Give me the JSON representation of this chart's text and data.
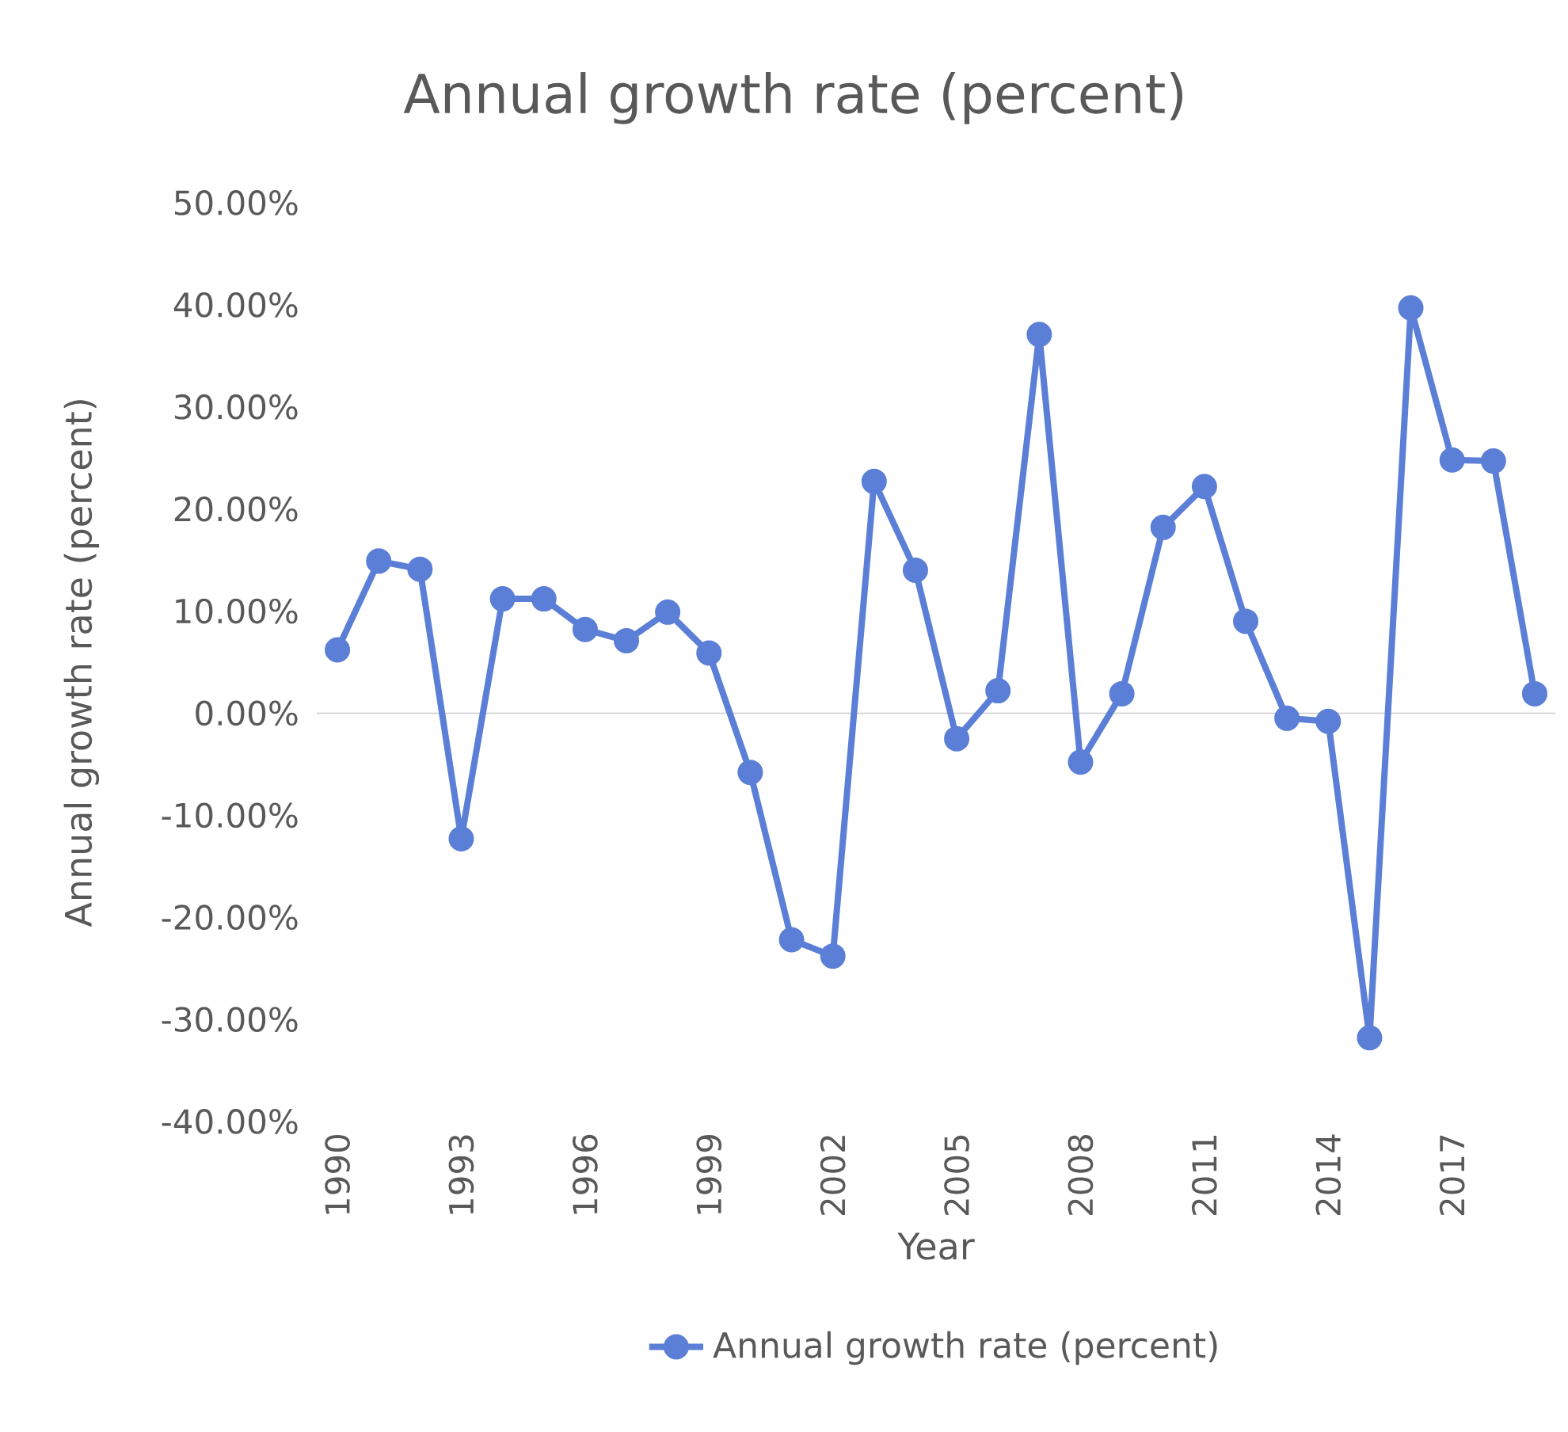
{
  "chart_data": {
    "type": "line",
    "title": "Annual growth rate (percent)",
    "xlabel": "Year",
    "ylabel": "Annual growth rate (percent)",
    "categories": [
      "1990",
      null,
      null,
      "1993",
      null,
      null,
      "1996",
      null,
      null,
      "1999",
      null,
      null,
      "2002",
      null,
      null,
      "2005",
      null,
      null,
      "2008",
      null,
      null,
      "2011",
      null,
      null,
      "2014",
      null,
      null,
      "2017",
      null,
      null
    ],
    "series": [
      {
        "name": "Annual growth rate (percent)",
        "color": "#5b7fd6",
        "values": [
          6.2,
          14.9,
          14.1,
          -12.3,
          11.2,
          11.2,
          8.2,
          7.1,
          9.9,
          5.9,
          -5.8,
          -22.2,
          -23.8,
          22.7,
          14.0,
          -2.5,
          2.2,
          37.1,
          -4.8,
          1.9,
          18.2,
          22.2,
          9.0,
          -0.5,
          -0.8,
          -31.8,
          39.7,
          24.8,
          24.7,
          1.9
        ]
      }
    ],
    "ylim": [
      -40,
      50
    ],
    "yticks": [
      {
        "value": -40,
        "label": "-40.00%"
      },
      {
        "value": -30,
        "label": "-30.00%"
      },
      {
        "value": -20,
        "label": "-20.00%"
      },
      {
        "value": -10,
        "label": "-10.00%"
      },
      {
        "value": 0,
        "label": "0.00%"
      },
      {
        "value": 10,
        "label": "10.00%"
      },
      {
        "value": 20,
        "label": "20.00%"
      },
      {
        "value": 30,
        "label": "30.00%"
      },
      {
        "value": 40,
        "label": "40.00%"
      },
      {
        "value": 50,
        "label": "50.00%"
      }
    ],
    "legend": "bottom",
    "marker": "circle"
  }
}
